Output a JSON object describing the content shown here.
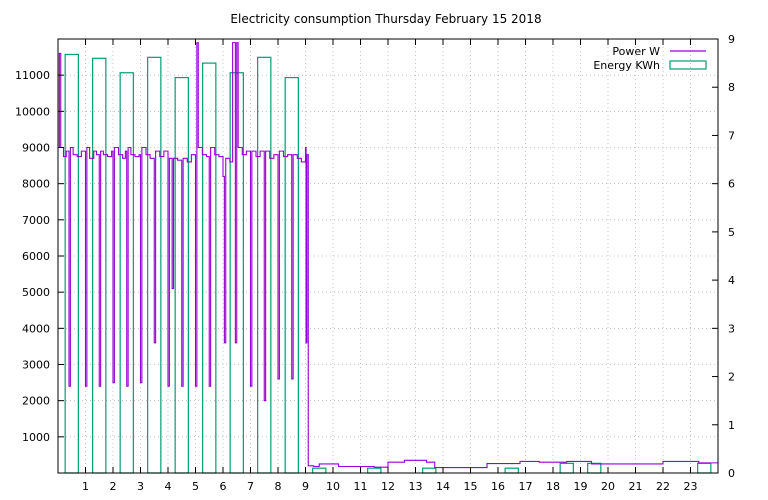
{
  "chart_data": {
    "type": "bar",
    "title": "Electricity consumption Thursday February 15 2018",
    "xlabel": "",
    "ylabel": "",
    "y2label": "",
    "xlim": [
      0,
      24
    ],
    "ylim": [
      0,
      12000
    ],
    "y2lim": [
      0,
      9
    ],
    "x_ticks": [
      1,
      2,
      3,
      4,
      5,
      6,
      7,
      8,
      9,
      10,
      11,
      12,
      13,
      14,
      15,
      16,
      17,
      18,
      19,
      20,
      21,
      22,
      23
    ],
    "y_ticks": [
      1000,
      2000,
      3000,
      4000,
      5000,
      6000,
      7000,
      8000,
      9000,
      10000,
      11000
    ],
    "y2_ticks": [
      0,
      1,
      2,
      3,
      4,
      5,
      6,
      7,
      8,
      9
    ],
    "grid": true,
    "legend_position": "top-right",
    "colors": {
      "power": "#9400D3",
      "energy": "#009E73",
      "grid": "#a0a0a0"
    },
    "series": [
      {
        "name": "Power W",
        "axis": "y",
        "style": "step-line",
        "points": [
          [
            0.0,
            9000
          ],
          [
            0.05,
            11600
          ],
          [
            0.1,
            9000
          ],
          [
            0.2,
            8750
          ],
          [
            0.3,
            8900
          ],
          [
            0.4,
            2400
          ],
          [
            0.45,
            9000
          ],
          [
            0.55,
            8800
          ],
          [
            0.7,
            8750
          ],
          [
            0.85,
            8900
          ],
          [
            1.0,
            2400
          ],
          [
            1.05,
            9000
          ],
          [
            1.15,
            8700
          ],
          [
            1.3,
            8900
          ],
          [
            1.4,
            8800
          ],
          [
            1.5,
            2400
          ],
          [
            1.55,
            8900
          ],
          [
            1.65,
            8800
          ],
          [
            1.8,
            8750
          ],
          [
            1.95,
            8900
          ],
          [
            2.0,
            2500
          ],
          [
            2.05,
            9000
          ],
          [
            2.2,
            8800
          ],
          [
            2.35,
            8700
          ],
          [
            2.45,
            8900
          ],
          [
            2.5,
            2400
          ],
          [
            2.55,
            9000
          ],
          [
            2.65,
            8800
          ],
          [
            2.8,
            8750
          ],
          [
            2.95,
            8800
          ],
          [
            3.0,
            2500
          ],
          [
            3.05,
            9000
          ],
          [
            3.2,
            8800
          ],
          [
            3.35,
            8700
          ],
          [
            3.5,
            3600
          ],
          [
            3.55,
            8900
          ],
          [
            3.7,
            8750
          ],
          [
            3.85,
            8900
          ],
          [
            4.0,
            2400
          ],
          [
            4.05,
            8700
          ],
          [
            4.15,
            5100
          ],
          [
            4.2,
            8700
          ],
          [
            4.35,
            8650
          ],
          [
            4.5,
            2400
          ],
          [
            4.55,
            8700
          ],
          [
            4.7,
            8600
          ],
          [
            4.85,
            8800
          ],
          [
            5.0,
            2400
          ],
          [
            5.05,
            11900
          ],
          [
            5.1,
            9000
          ],
          [
            5.25,
            8800
          ],
          [
            5.4,
            8750
          ],
          [
            5.5,
            2400
          ],
          [
            5.55,
            9000
          ],
          [
            5.7,
            8800
          ],
          [
            5.85,
            8750
          ],
          [
            6.0,
            8200
          ],
          [
            6.05,
            3600
          ],
          [
            6.1,
            8700
          ],
          [
            6.25,
            8600
          ],
          [
            6.35,
            11900
          ],
          [
            6.45,
            3600
          ],
          [
            6.5,
            11900
          ],
          [
            6.55,
            9000
          ],
          [
            6.7,
            8800
          ],
          [
            6.85,
            8900
          ],
          [
            7.0,
            2400
          ],
          [
            7.05,
            8900
          ],
          [
            7.2,
            8750
          ],
          [
            7.35,
            8900
          ],
          [
            7.5,
            2000
          ],
          [
            7.55,
            8900
          ],
          [
            7.7,
            8700
          ],
          [
            7.85,
            8800
          ],
          [
            8.0,
            2600
          ],
          [
            8.05,
            8900
          ],
          [
            8.2,
            8750
          ],
          [
            8.35,
            8800
          ],
          [
            8.5,
            2600
          ],
          [
            8.55,
            8800
          ],
          [
            8.7,
            8700
          ],
          [
            8.85,
            8600
          ],
          [
            9.0,
            9000
          ],
          [
            9.02,
            3600
          ],
          [
            9.05,
            8800
          ],
          [
            9.1,
            200
          ],
          [
            9.3,
            180
          ],
          [
            9.5,
            250
          ],
          [
            10.2,
            180
          ],
          [
            11.5,
            160
          ],
          [
            12.0,
            300
          ],
          [
            12.6,
            350
          ],
          [
            13.4,
            300
          ],
          [
            13.7,
            150
          ],
          [
            15.6,
            260
          ],
          [
            16.8,
            320
          ],
          [
            17.5,
            300
          ],
          [
            18.5,
            320
          ],
          [
            19.4,
            250
          ],
          [
            21.0,
            250
          ],
          [
            22.0,
            320
          ],
          [
            23.3,
            280
          ],
          [
            24.0,
            280
          ]
        ]
      },
      {
        "name": "Energy KWh",
        "axis": "y2",
        "style": "hollow-bars",
        "x": [
          0,
          1,
          2,
          3,
          4,
          5,
          6,
          7,
          8,
          9,
          10,
          11,
          12,
          13,
          14,
          15,
          16,
          17,
          18,
          19,
          20,
          21,
          22,
          23
        ],
        "values": [
          8.68,
          8.6,
          8.3,
          8.62,
          8.2,
          8.5,
          8.3,
          8.62,
          8.2,
          0.1,
          0,
          0.1,
          0,
          0.1,
          0,
          0,
          0.1,
          0,
          0.2,
          0.2,
          0,
          0,
          0,
          0.2
        ]
      }
    ]
  }
}
